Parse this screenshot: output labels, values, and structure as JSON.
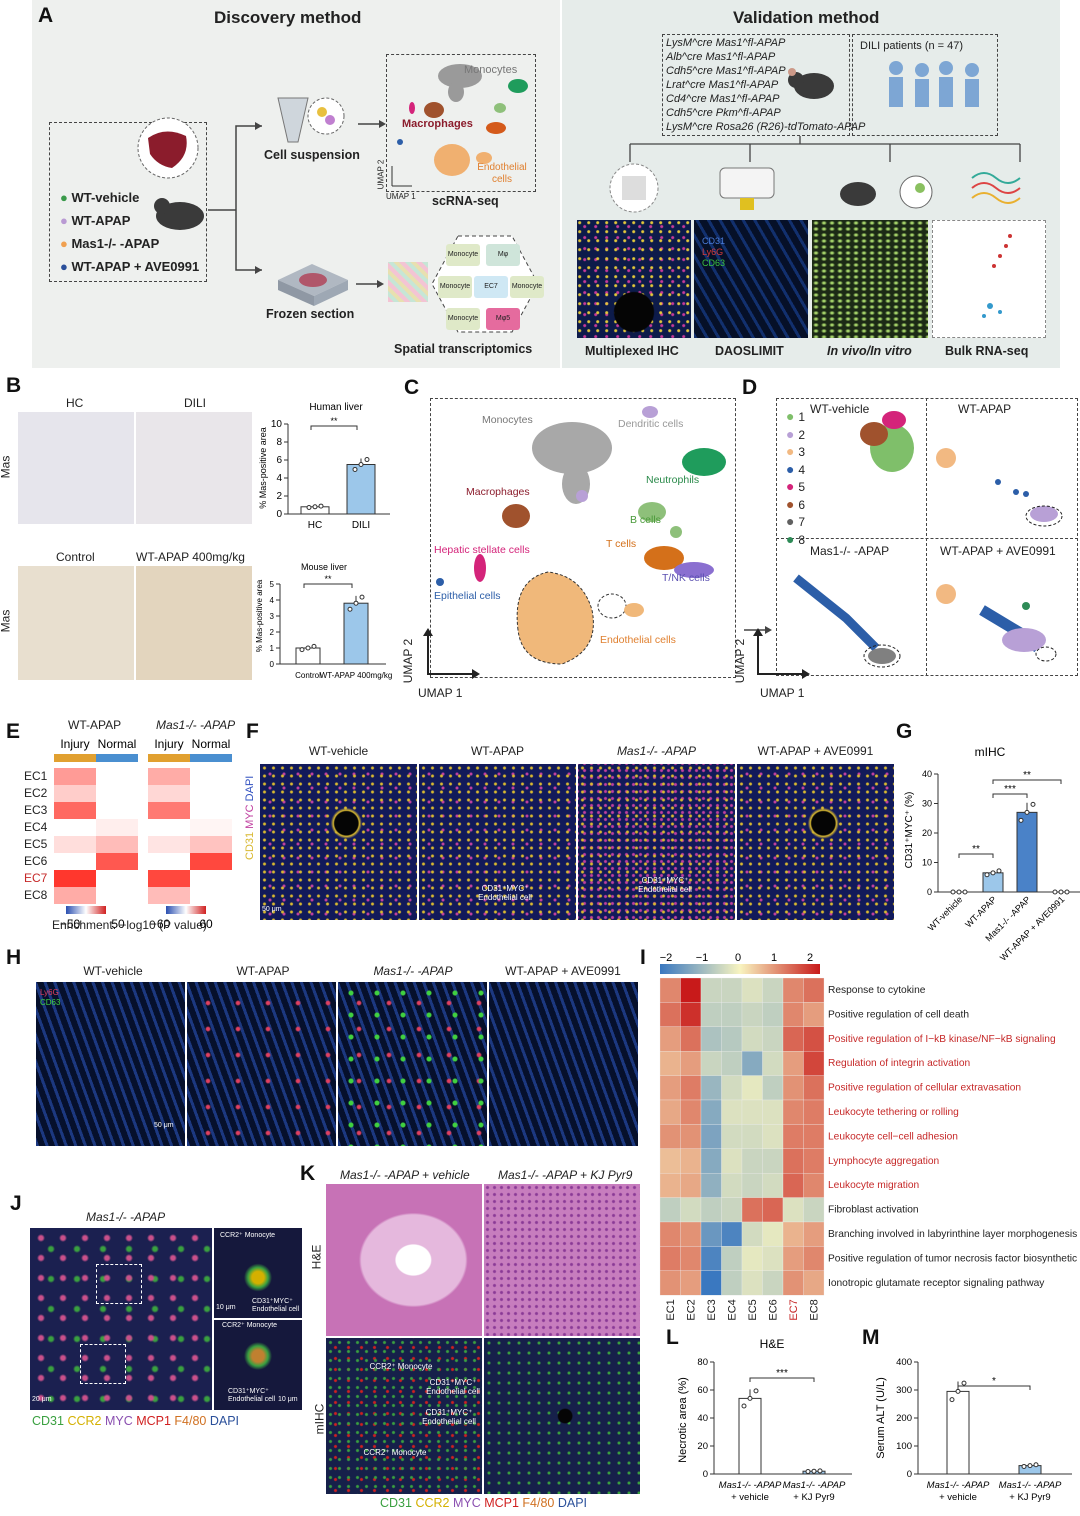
{
  "panelA": {
    "letter": "A",
    "discovery_title": "Discovery method",
    "validation_title": "Validation method",
    "groups": [
      "WT-vehicle",
      "WT-APAP",
      "Mas1-/- -APAP",
      "WT-APAP + AVE0991"
    ],
    "group_colors": [
      "#3a9a4a",
      "#b99ad3",
      "#f0a050",
      "#2a4f9a"
    ],
    "cell_suspension": "Cell suspension",
    "scrna": "scRNA-seq",
    "frozen": "Frozen section",
    "spatial": "Spatial transcriptomics",
    "umap_labels": {
      "monocytes": "Monocytes",
      "macrophages": "Macrophages",
      "endothelial": "Endothelial cells",
      "umap1": "UMAP 1",
      "umap2": "UMAP 2"
    },
    "spatial_cells": [
      "Monocyte",
      "Mφ",
      "Monocyte",
      "EC7",
      "Monocyte",
      "Monocyte",
      "Mφ5"
    ],
    "mouse_lines": [
      "LysM^cre Mas1^fl-APAP",
      "Alb^cre Mas1^fl-APAP",
      "Cdh5^cre Mas1^fl-APAP",
      "Lrat^cre Mas1^fl-APAP",
      "Cd4^cre Mas1^fl-APAP",
      "Cdh5^cre Pkm^fl-APAP",
      "LysM^cre Rosa26 (R26)-tdTomato-APAP"
    ],
    "dili_patients": "DILI patients (n = 47)",
    "methods": [
      "Multiplexed IHC",
      "DAOSLIMIT",
      "In vivo/In vitro",
      "Bulk RNA-seq"
    ],
    "dao_stains": [
      "CD31",
      "Ly6G",
      "CD63"
    ]
  },
  "panelB": {
    "letter": "B",
    "top_cols": [
      "HC",
      "DILI"
    ],
    "bottom_cols": [
      "Control",
      "WT-APAP 400mg/kg"
    ],
    "row_label": "Mas",
    "chart_human": {
      "title": "Human liver",
      "ylabel": "% Mas-positive area",
      "ymax": 10,
      "ticks": [
        "0",
        "2",
        "4",
        "6",
        "8",
        "10"
      ],
      "categories": [
        "HC",
        "DILI"
      ],
      "values": [
        0.8,
        5.5
      ],
      "sig": "**"
    },
    "chart_mouse": {
      "title": "Mouse liver",
      "ylabel": "% Mas-positive area",
      "ymax": 5,
      "ticks": [
        "0",
        "1",
        "2",
        "3",
        "4",
        "5"
      ],
      "categories": [
        "Control",
        "WT-APAP 400mg/kg"
      ],
      "values": [
        1.0,
        3.8
      ],
      "sig": "**"
    }
  },
  "panelC": {
    "letter": "C",
    "labels": [
      "Monocytes",
      "Dendritic cells",
      "Neutrophils",
      "Macrophages",
      "B cells",
      "T cells",
      "T/NK cells",
      "Hepatic stellate cells",
      "Epithelial cells",
      "Endothelial cells"
    ],
    "umap1": "UMAP 1",
    "umap2": "UMAP 2"
  },
  "panelD": {
    "letter": "D",
    "titles": [
      "WT-vehicle",
      "WT-APAP",
      "Mas1-/- -APAP",
      "WT-APAP + AVE0991"
    ],
    "legend": [
      "1",
      "2",
      "3",
      "4",
      "5",
      "6",
      "7",
      "8"
    ],
    "legend_colors": [
      "#7fbf6a",
      "#b8a0d6",
      "#f2b982",
      "#2c5ea8",
      "#d4247a",
      "#a0522d",
      "#606060",
      "#2e8b57"
    ],
    "umap1": "UMAP 1",
    "umap2": "UMAP 2"
  },
  "panelE": {
    "letter": "E",
    "groups": [
      "WT-APAP",
      "Mas1-/- -APAP"
    ],
    "cols": [
      "Injury",
      "Normal",
      "Injury",
      "Normal"
    ],
    "rows": [
      "EC1",
      "EC2",
      "EC3",
      "EC4",
      "EC5",
      "EC6",
      "EC7",
      "EC8"
    ],
    "values": [
      [
        30,
        0,
        25,
        0
      ],
      [
        15,
        0,
        12,
        0
      ],
      [
        45,
        0,
        40,
        0
      ],
      [
        0,
        5,
        0,
        3
      ],
      [
        10,
        20,
        8,
        18
      ],
      [
        0,
        50,
        0,
        55
      ],
      [
        60,
        0,
        55,
        0
      ],
      [
        25,
        0,
        20,
        0
      ]
    ],
    "scale1": [
      "−50",
      "50"
    ],
    "scale2": [
      "−60",
      "60"
    ],
    "caption": "Enrichment: −log10 (P value)"
  },
  "panelF": {
    "letter": "F",
    "titles": [
      "WT-vehicle",
      "WT-APAP",
      "Mas1-/- -APAP",
      "WT-APAP + AVE0991"
    ],
    "stain": [
      "CD31",
      "MYC",
      "DAPI"
    ],
    "annot": "CD31⁺MYC⁺ Endothelial cell",
    "scale": "50 μm"
  },
  "panelG": {
    "letter": "G",
    "title": "mIHC",
    "ylabel": "CD31⁺MYC⁺ (%)",
    "ticks": [
      "0",
      "10",
      "20",
      "30",
      "40"
    ],
    "ymax": 40,
    "categories": [
      "WT-vehicle",
      "WT-APAP",
      "Mas1-/- -APAP",
      "WT-APAP + AVE0991"
    ],
    "values": [
      0,
      6.5,
      27,
      0
    ],
    "sig": [
      "**",
      "***",
      "**"
    ]
  },
  "panelH": {
    "letter": "H",
    "titles": [
      "WT-vehicle",
      "WT-APAP",
      "Mas1-/- -APAP",
      "WT-APAP + AVE0991"
    ],
    "stain": [
      "Ly6G",
      "CD63"
    ],
    "scale": "50 μm"
  },
  "panelI": {
    "letter": "I",
    "scale_ticks": [
      "−2",
      "−1",
      "0",
      "1",
      "2"
    ],
    "cols": [
      "EC1",
      "EC2",
      "EC3",
      "EC4",
      "EC5",
      "EC6",
      "EC7",
      "EC8"
    ],
    "terms": [
      "Response to cytokine",
      "Positive regulation of cell death",
      "Positive regulation of I−kB kinase/NF−kB signaling",
      "Regulation of integrin activation",
      "Positive regulation of cellular extravasation",
      "Leukocyte tethering or rolling",
      "Leukocyte cell−cell adhesion",
      "Lymphocyte aggregation",
      "Leukocyte migration",
      "Fibroblast activation",
      "Branching involved in labyrinthine layer morphogenesis",
      "Positive regulation of tumor necrosis factor biosynthetic",
      "Ionotropic glutamate receptor signaling pathway"
    ],
    "red_terms": [
      2,
      3,
      4,
      5,
      6,
      7,
      8
    ],
    "values": [
      [
        1,
        2,
        -0.5,
        -0.5,
        -0.3,
        -0.5,
        1,
        1.2
      ],
      [
        1.2,
        1.8,
        -0.6,
        -0.6,
        -0.5,
        -0.6,
        1,
        0.8
      ],
      [
        0.8,
        1.2,
        -0.8,
        -0.7,
        -0.4,
        -0.5,
        1.3,
        1.5
      ],
      [
        0.6,
        0.8,
        -0.5,
        -0.6,
        -1.2,
        -0.4,
        0.8,
        1.6
      ],
      [
        0.8,
        1.1,
        -1,
        -0.4,
        -0.2,
        -0.6,
        0.9,
        1.2
      ],
      [
        0.7,
        1,
        -1.2,
        -0.3,
        -0.3,
        -0.3,
        1,
        1.1
      ],
      [
        0.9,
        0.9,
        -1.3,
        -0.4,
        -0.4,
        -0.3,
        1.1,
        1.1
      ],
      [
        0.5,
        0.6,
        -1.2,
        -0.3,
        -0.5,
        -0.5,
        1.2,
        1.1
      ],
      [
        0.6,
        0.7,
        -1.1,
        -0.4,
        -0.5,
        -0.4,
        1.3,
        1
      ],
      [
        -0.6,
        -0.4,
        -0.6,
        -0.5,
        1.2,
        1.3,
        -0.3,
        -0.5
      ],
      [
        1,
        0.9,
        -1.5,
        -1.8,
        -0.4,
        -0.2,
        0.6,
        0.8
      ],
      [
        1.1,
        1,
        -1.8,
        -0.6,
        -0.2,
        -0.3,
        0.8,
        1
      ],
      [
        0.9,
        0.8,
        -2,
        -0.6,
        -0.3,
        -0.5,
        0.9,
        0.7
      ]
    ]
  },
  "panelJ": {
    "letter": "J",
    "title": "Mas1-/- -APAP",
    "legend": [
      "CD31",
      "CCR2",
      "MYC",
      "MCP1",
      "F4/80",
      "DAPI"
    ],
    "legend_colors": [
      "#3aa040",
      "#d4b000",
      "#8a4fb0",
      "#d02020",
      "#d07020",
      "#2a4f9a"
    ],
    "insets": [
      "CCR2⁺ Monocyte",
      "CD31⁺MYC⁺ Endothelial cell",
      "CCR2⁺ Monocyte",
      "CD31⁺MYC⁺ Endothelial cell"
    ],
    "scales": [
      "20 μm",
      "10 μm",
      "10 μm"
    ]
  },
  "panelK": {
    "letter": "K",
    "titles": [
      "Mas1-/- -APAP + vehicle",
      "Mas1-/- -APAP + KJ Pyr9"
    ],
    "rows": [
      "H&E",
      "mIHC"
    ],
    "annots": [
      "CCR2⁺ Monocyte",
      "CD31⁺MYC⁺ Endothelial cell",
      "CD31⁺MYC⁺ Endothelial cell",
      "CCR2⁺ Monocyte"
    ],
    "legend": [
      "CD31",
      "CCR2",
      "MYC",
      "MCP1",
      "F4/80",
      "DAPI"
    ],
    "legend_colors": [
      "#3aa040",
      "#d4b000",
      "#8a4fb0",
      "#d02020",
      "#d07020",
      "#2a4f9a"
    ]
  },
  "panelL": {
    "letter": "L",
    "title": "H&E",
    "ylabel": "Necrotic area (%)",
    "ticks": [
      "0",
      "20",
      "40",
      "60",
      "80"
    ],
    "ymax": 80,
    "categories": [
      "Mas1-/- -APAP + vehicle",
      "Mas1-/- -APAP + KJ Pyr9"
    ],
    "values": [
      54,
      2
    ],
    "sig": "***"
  },
  "panelM": {
    "letter": "M",
    "ylabel": "Serum ALT (U/L)",
    "ticks": [
      "0",
      "100",
      "200",
      "300",
      "400"
    ],
    "ymax": 400,
    "categories": [
      "Mas1-/- -APAP + vehicle",
      "Mas1-/- -APAP + KJ Pyr9"
    ],
    "values": [
      295,
      30
    ],
    "sig": "*"
  }
}
